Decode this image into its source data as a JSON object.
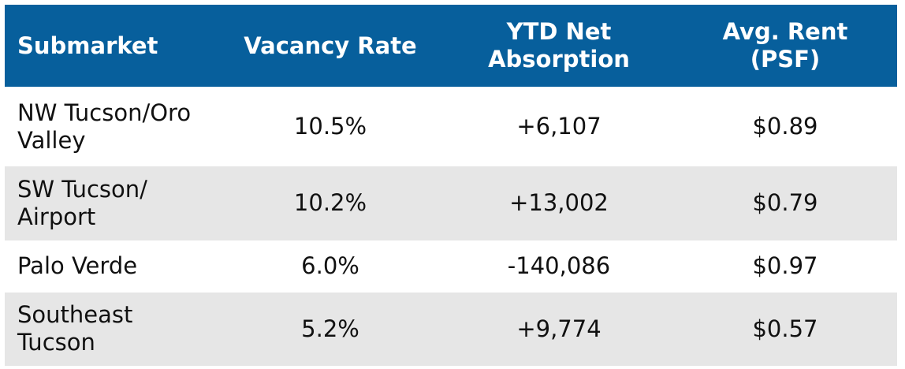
{
  "chart_data": {
    "type": "table",
    "columns": [
      "Submarket",
      "Vacancy Rate",
      "YTD Net Absorption",
      "Avg. Rent (PSF)"
    ],
    "header": {
      "submarket": "Submarket",
      "vacancy_rate": "Vacancy Rate",
      "ytd_net_absorption_line1": "YTD Net",
      "ytd_net_absorption_line2": "Absorption",
      "avg_rent_line1": "Avg. Rent",
      "avg_rent_line2": "(PSF)"
    },
    "rows": [
      {
        "submarket_line1": "NW Tucson/Oro",
        "submarket_line2": "Valley",
        "vacancy_rate": "10.5%",
        "ytd_net_absorption": "+6,107",
        "avg_rent": "$0.89"
      },
      {
        "submarket_line1": "SW Tucson/",
        "submarket_line2": "Airport",
        "vacancy_rate": "10.2%",
        "ytd_net_absorption": "+13,002",
        "avg_rent": "$0.79"
      },
      {
        "submarket_line1": "Palo Verde",
        "submarket_line2": "",
        "vacancy_rate": "6.0%",
        "ytd_net_absorption": "-140,086",
        "avg_rent": "$0.97"
      },
      {
        "submarket_line1": "Southeast",
        "submarket_line2": "Tucson",
        "vacancy_rate": "5.2%",
        "ytd_net_absorption": "+9,774",
        "avg_rent": "$0.57"
      }
    ]
  },
  "colors": {
    "header_background": "#075f9c",
    "header_text": "#ffffff",
    "row_alt_background": "#e6e6e6",
    "body_text": "#111111"
  }
}
